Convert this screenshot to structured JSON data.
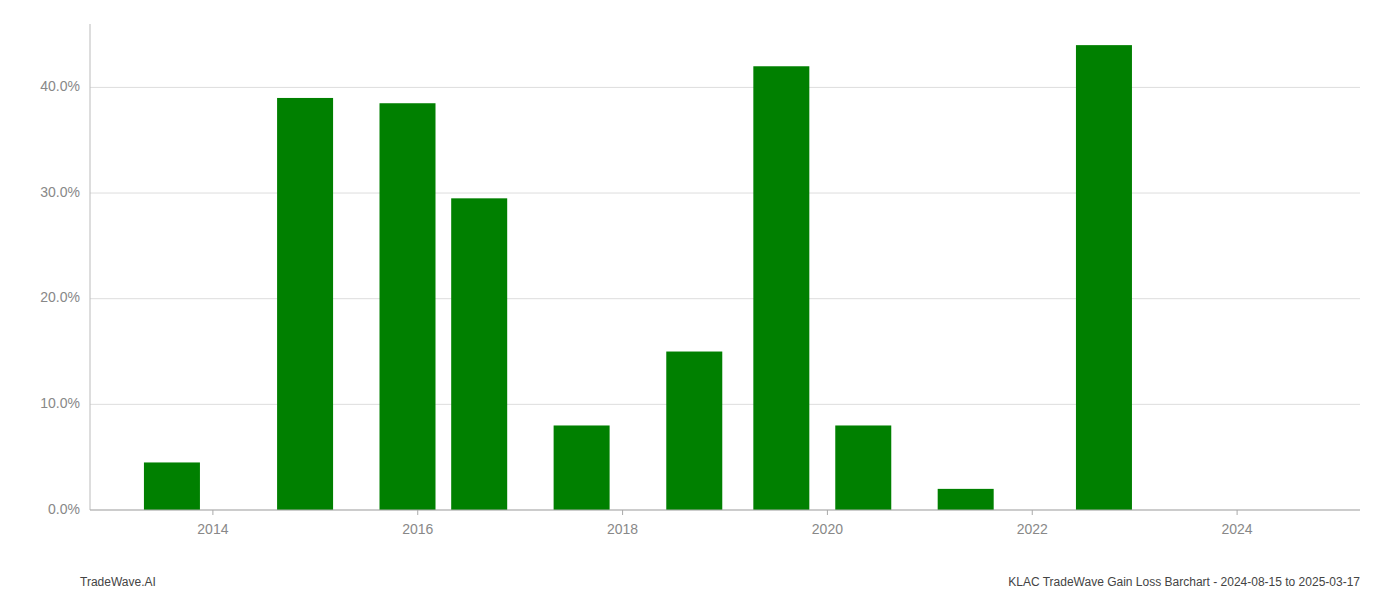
{
  "chart_data": {
    "type": "bar",
    "x": [
      2013.6,
      2014.9,
      2015.9,
      2016.6,
      2017.6,
      2018.7,
      2019.55,
      2020.35,
      2021.35,
      2022.7
    ],
    "values": [
      4.5,
      39.0,
      38.5,
      29.5,
      8.0,
      15.0,
      42.0,
      8.0,
      2.0,
      44.0
    ],
    "color": "#008000",
    "xlim": [
      2012.8,
      2025.2
    ],
    "xticks": [
      2014,
      2016,
      2018,
      2020,
      2022,
      2024
    ],
    "ylim": [
      0,
      46
    ],
    "yticks": [
      {
        "value": 0,
        "label": "0.0%"
      },
      {
        "value": 10,
        "label": "10.0%"
      },
      {
        "value": 20,
        "label": "20.0%"
      },
      {
        "value": 30,
        "label": "30.0%"
      },
      {
        "value": 40,
        "label": "40.0%"
      }
    ],
    "grid": true,
    "annotations": [
      "TradeWave.AI",
      "KLAC TradeWave Gain Loss Barchart - 2024-08-15 to 2025-03-17"
    ]
  }
}
